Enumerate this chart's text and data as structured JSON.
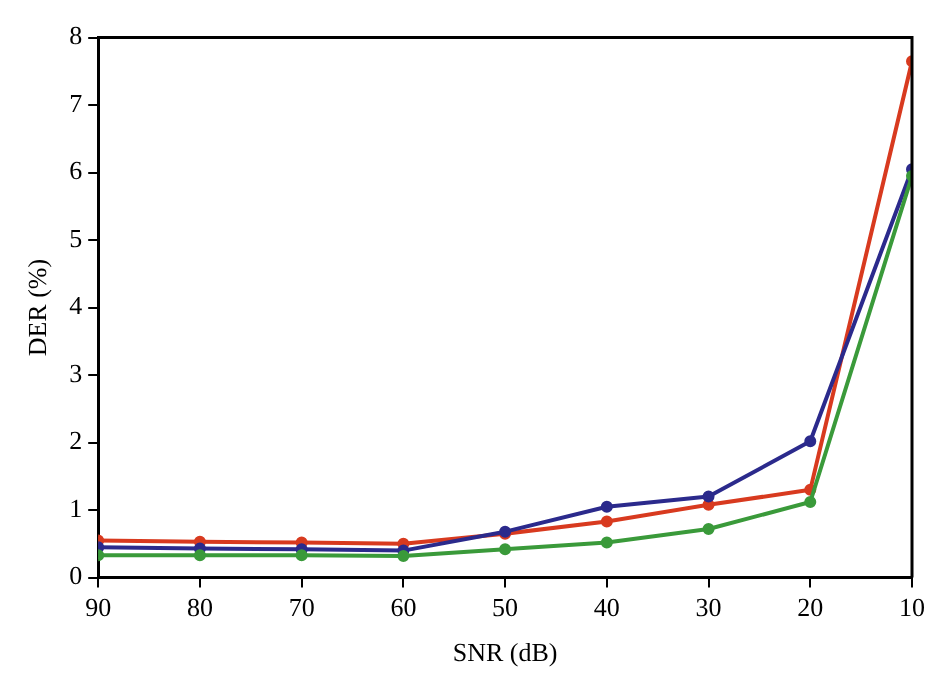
{
  "chart_data": {
    "type": "line",
    "xlabel": "SNR (dB)",
    "ylabel": "DER (%)",
    "x": [
      90,
      80,
      70,
      60,
      50,
      40,
      30,
      20,
      10
    ],
    "xlim": [
      90,
      10
    ],
    "xticks": [
      90,
      80,
      70,
      60,
      50,
      40,
      30,
      20,
      10
    ],
    "ylim": [
      0,
      8
    ],
    "yticks": [
      0,
      1,
      2,
      3,
      4,
      5,
      6,
      7,
      8
    ],
    "series": [
      {
        "color": "#d83a1f",
        "values": [
          0.55,
          0.53,
          0.52,
          0.5,
          0.65,
          0.83,
          1.08,
          1.3,
          7.65
        ]
      },
      {
        "color": "#2b2a8c",
        "values": [
          0.45,
          0.43,
          0.42,
          0.4,
          0.68,
          1.05,
          1.2,
          2.02,
          6.05
        ]
      },
      {
        "color": "#3a9a3a",
        "values": [
          0.33,
          0.33,
          0.33,
          0.32,
          0.42,
          0.52,
          0.72,
          1.12,
          5.95
        ]
      }
    ],
    "marker": "circle",
    "line_style": "solid",
    "grid": false,
    "legend": false
  }
}
